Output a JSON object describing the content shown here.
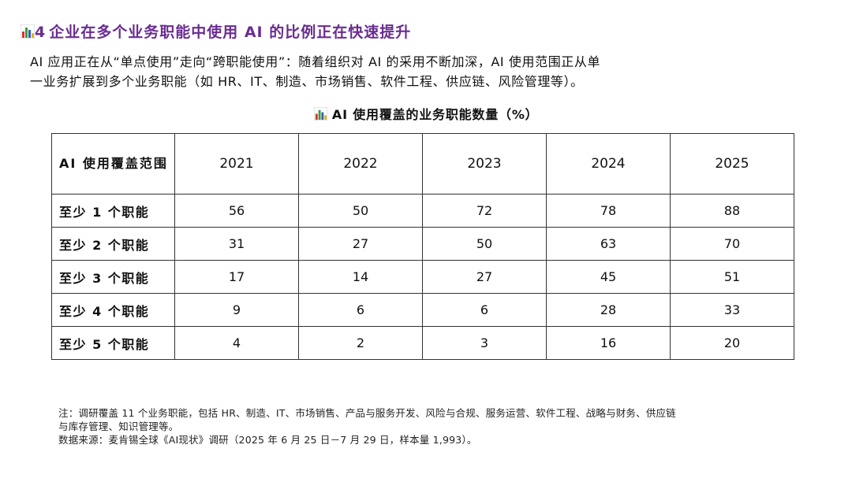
{
  "header": {
    "number": "4",
    "title": "企业在多个业务职能中使用 AI 的比例正在快速提升",
    "icon": "bar-chart-icon"
  },
  "intro": {
    "line1": "AI 应用正在从“单点使用”走向“跨职能使用”：随着组织对 AI 的采用不断加深，AI 使用范围正从单",
    "line2": "一业务扩展到多个业务职能（如 HR、IT、制造、市场销售、软件工程、供应链、风险管理等）。"
  },
  "table": {
    "title": "AI 使用覆盖的业务职能数量（%）",
    "corner_label": "AI 使用覆盖范围",
    "years": [
      "2021",
      "2022",
      "2023",
      "2024",
      "2025"
    ],
    "rows": [
      {
        "label": "至少 1 个职能",
        "values": [
          "56",
          "50",
          "72",
          "78",
          "88"
        ]
      },
      {
        "label": "至少 2 个职能",
        "values": [
          "31",
          "27",
          "50",
          "63",
          "70"
        ]
      },
      {
        "label": "至少 3 个职能",
        "values": [
          "17",
          "14",
          "27",
          "45",
          "51"
        ]
      },
      {
        "label": "至少 4 个职能",
        "values": [
          "9",
          "6",
          "6",
          "28",
          "33"
        ]
      },
      {
        "label": "至少 5 个职能",
        "values": [
          "4",
          "2",
          "3",
          "16",
          "20"
        ]
      }
    ]
  },
  "notes": {
    "note_line1": "注：调研覆盖 11 个业务职能，包括 HR、制造、IT、市场销售、产品与服务开发、风险与合规、服务运营、软件工程、战略与财务、供应链",
    "note_line2": "与库存管理、知识管理等。",
    "source": "数据来源：麦肯锡全球《AI现状》调研（2025 年 6 月 25 日－7 月 29 日，样本量 1,993）。"
  },
  "colors": {
    "title": "#6a2c91",
    "icon_red": "#d0342c",
    "icon_green": "#3a9b3a",
    "icon_blue": "#2f5fb3",
    "icon_yellow": "#e8b020",
    "border": "#333333"
  }
}
